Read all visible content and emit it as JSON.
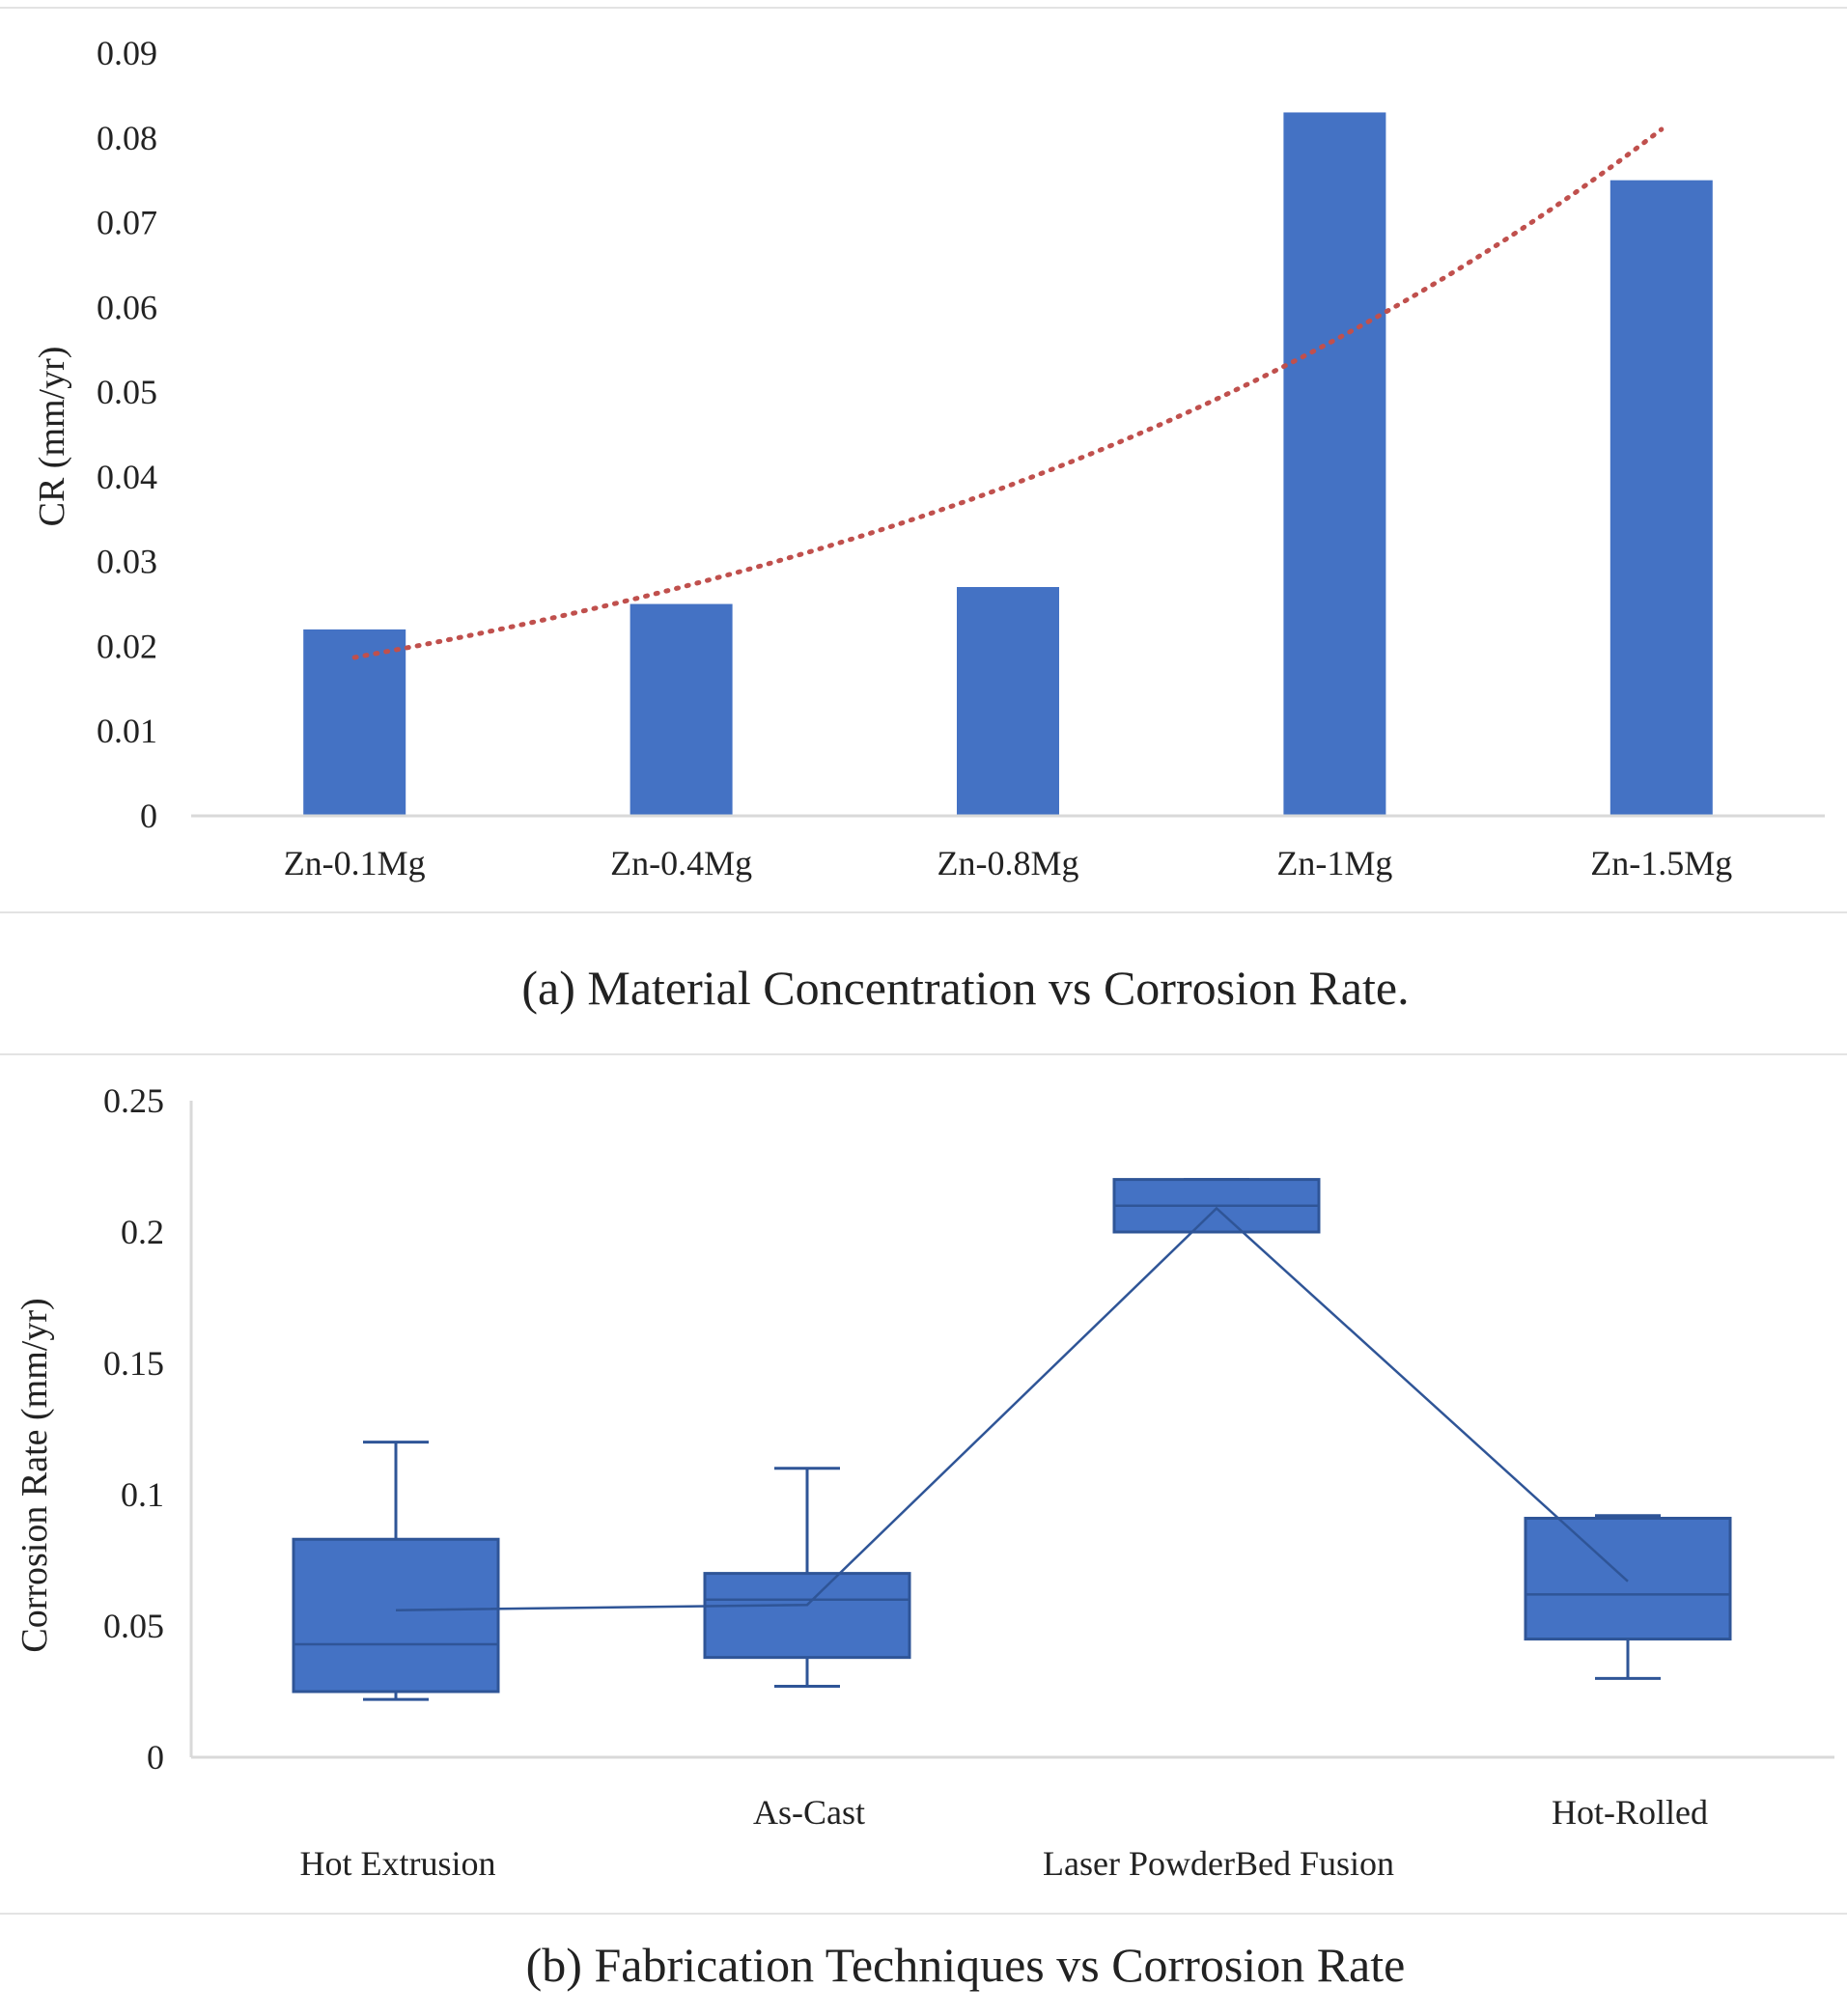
{
  "chart_data": [
    {
      "type": "bar",
      "title": "",
      "caption": "(a)  Material Concentration vs Corrosion Rate.",
      "xlabel": "",
      "ylabel": "CR (mm/yr)",
      "ylim": [
        0,
        0.09
      ],
      "yticks": [
        "0",
        "0.01",
        "0.02",
        "0.03",
        "0.04",
        "0.05",
        "0.06",
        "0.07",
        "0.08",
        "0.09"
      ],
      "categories": [
        "Zn-0.1Mg",
        "Zn-0.4Mg",
        "Zn-0.8Mg",
        "Zn-1Mg",
        "Zn-1.5Mg"
      ],
      "values": [
        0.022,
        0.025,
        0.027,
        0.083,
        0.075
      ],
      "trendline": {
        "type": "exponential",
        "style": "dotted",
        "start_value": 0.0187,
        "end_value": 0.081
      },
      "colors": {
        "bar": "#4472c4",
        "trend": "#c0504d",
        "axis": "#d9d9d9"
      }
    },
    {
      "type": "box",
      "title": "",
      "caption": "(b) Fabrication Techniques vs Corrosion Rate",
      "xlabel": "",
      "ylabel": "Corrosion Rate (mm/yr)",
      "ylim": [
        0,
        0.25
      ],
      "yticks": [
        "0",
        "0.05",
        "0.1",
        "0.15",
        "0.2",
        "0.25"
      ],
      "categories": [
        "Hot Extrusion",
        "As-Cast",
        "Laser PowderBed Fusion",
        "Hot-Rolled"
      ],
      "boxes": [
        {
          "min": 0.022,
          "q1": 0.025,
          "median": 0.043,
          "q3": 0.083,
          "max": 0.12,
          "mean": 0.056
        },
        {
          "min": 0.027,
          "q1": 0.038,
          "median": 0.06,
          "q3": 0.07,
          "max": 0.11,
          "mean": 0.058
        },
        {
          "min": 0.2,
          "q1": 0.2,
          "median": 0.21,
          "q3": 0.22,
          "max": 0.22,
          "mean": 0.209
        },
        {
          "min": 0.03,
          "q1": 0.045,
          "median": 0.062,
          "q3": 0.091,
          "max": 0.092,
          "mean": 0.067
        }
      ],
      "colors": {
        "box": "#4472c4",
        "line": "#2f5597",
        "axis": "#d9d9d9"
      }
    }
  ]
}
